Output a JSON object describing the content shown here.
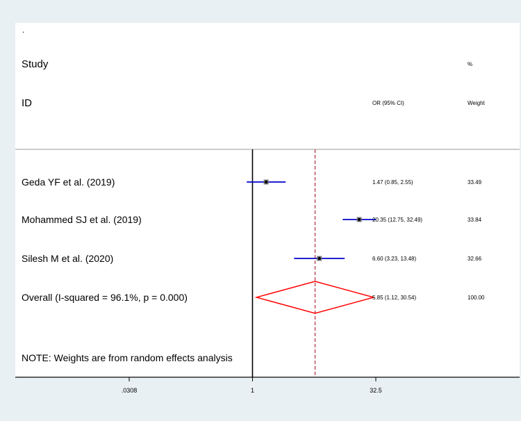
{
  "chart_data": {
    "type": "forest",
    "corner_mark": ".",
    "headers": {
      "study_line1": "Study",
      "study_line2": "ID",
      "effect": "OR (95% CI)",
      "weight_line1": "%",
      "weight_line2": "Weight"
    },
    "studies": [
      {
        "label": "Geda YF et al. (2019)",
        "or": 1.47,
        "lower": 0.85,
        "upper": 2.55,
        "ci_text": "1.47 (0.85, 2.55)",
        "weight": "33.49"
      },
      {
        "label": "Mohammed SJ et al. (2019)",
        "or": 20.35,
        "lower": 12.75,
        "upper": 32.49,
        "ci_text": "20.35 (12.75, 32.49)",
        "weight": "33.84"
      },
      {
        "label": "Silesh M et al. (2020)",
        "or": 6.6,
        "lower": 3.23,
        "upper": 13.48,
        "ci_text": "6.60 (3.23, 13.48)",
        "weight": "32.66"
      }
    ],
    "overall": {
      "label": "Overall  (I-squared = 96.1%, p = 0.000)",
      "or": 5.85,
      "lower": 1.12,
      "upper": 30.54,
      "ci_text": "5.85 (1.12, 30.54)",
      "weight": "100.00"
    },
    "note": "NOTE: Weights are from random effects analysis",
    "x_scale": "log",
    "x_range": [
      0.0308,
      32.5
    ],
    "null_value": 1,
    "x_ticks": [
      {
        "value": 0.0308,
        "label": ".0308"
      },
      {
        "value": 1,
        "label": "1"
      },
      {
        "value": 32.5,
        "label": "32.5"
      }
    ],
    "colors": {
      "background": "#e8f0f4",
      "plot_area": "#ffffff",
      "ci_line": "#0000cc",
      "point": "#000000",
      "diamond": "#ff0000",
      "overall_line": "#b03a48",
      "null_line": "#000000"
    }
  }
}
